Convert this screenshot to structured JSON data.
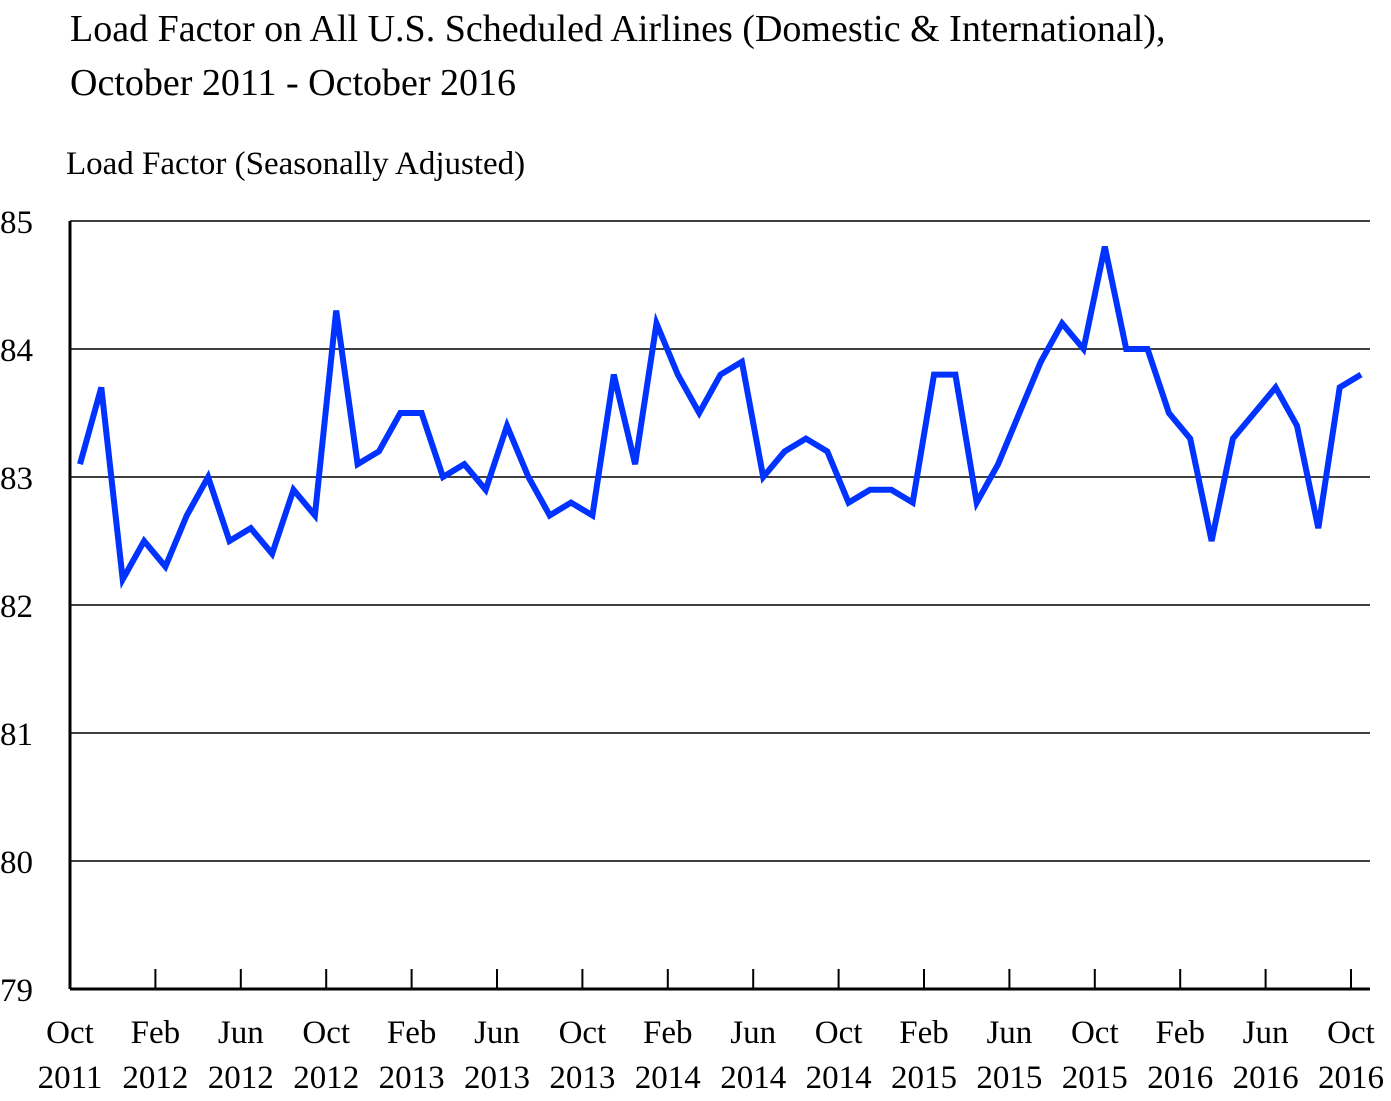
{
  "chart_data": {
    "type": "line",
    "title": [
      "Load Factor on All U.S. Scheduled Airlines (Domestic & International),",
      "October 2011 - October 2016"
    ],
    "ylabel": "Load Factor (Seasonally Adjusted)",
    "xlabel": "",
    "ylim": [
      79,
      85
    ],
    "yticks": [
      "79",
      "80",
      "81",
      "82",
      "83",
      "84",
      "85"
    ],
    "grid": "horizontal",
    "line_color": "#0033ff",
    "x_start": "Oct 2011",
    "x_end": "Oct 2016",
    "x_frequency": "monthly",
    "xtick_labels": [
      [
        "Oct",
        "2011"
      ],
      [
        "Feb",
        "2012"
      ],
      [
        "Jun",
        "2012"
      ],
      [
        "Oct",
        "2012"
      ],
      [
        "Feb",
        "2013"
      ],
      [
        "Jun",
        "2013"
      ],
      [
        "Oct",
        "2013"
      ],
      [
        "Feb",
        "2014"
      ],
      [
        "Jun",
        "2014"
      ],
      [
        "Oct",
        "2014"
      ],
      [
        "Feb",
        "2015"
      ],
      [
        "Jun",
        "2015"
      ],
      [
        "Oct",
        "2015"
      ],
      [
        "Feb",
        "2016"
      ],
      [
        "Jun",
        "2016"
      ],
      [
        "Oct",
        "2016"
      ]
    ],
    "values": [
      83.1,
      83.7,
      82.2,
      82.5,
      82.3,
      82.7,
      83.0,
      82.5,
      82.6,
      82.4,
      82.9,
      82.7,
      84.3,
      83.1,
      83.2,
      83.5,
      83.5,
      83.0,
      83.1,
      82.9,
      83.4,
      83.0,
      82.7,
      82.8,
      82.7,
      83.8,
      83.1,
      84.2,
      83.8,
      83.5,
      83.8,
      83.9,
      83.0,
      83.2,
      83.3,
      83.2,
      82.8,
      82.9,
      82.9,
      82.8,
      83.8,
      83.8,
      82.8,
      83.1,
      83.5,
      83.9,
      84.2,
      84.0,
      84.8,
      84.0,
      84.0,
      83.5,
      83.3,
      82.5,
      83.3,
      83.5,
      83.7,
      83.4,
      82.6,
      83.7,
      83.8
    ]
  }
}
